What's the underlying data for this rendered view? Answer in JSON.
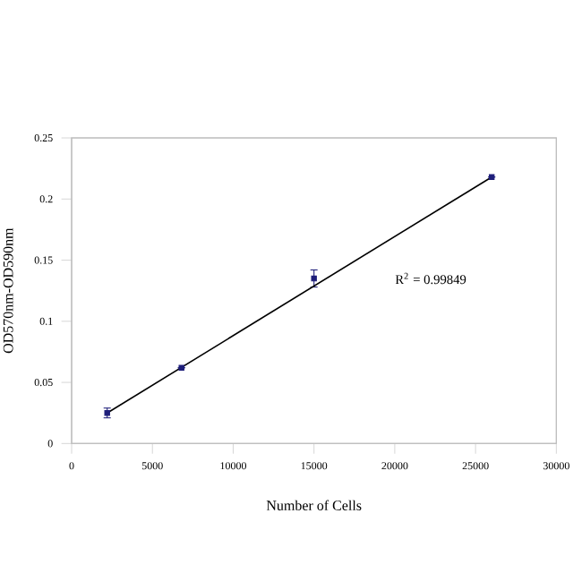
{
  "chart_data": {
    "type": "scatter",
    "xlabel": "Number of Cells",
    "ylabel": "OD570nm-OD590nm",
    "xlim": [
      0,
      30000
    ],
    "ylim": [
      0,
      0.25
    ],
    "xticks": [
      0,
      5000,
      10000,
      15000,
      20000,
      25000,
      30000
    ],
    "yticks": [
      0,
      0.05,
      0.1,
      0.15,
      0.2,
      0.25
    ],
    "grid": false,
    "marker": "square",
    "annotations": [
      "R$^{2}$ = 0.99849"
    ],
    "series": [
      {
        "color": "#1f1f7a",
        "x": [
          2200,
          6800,
          15000,
          26000
        ],
        "values": [
          0.025,
          0.062,
          0.135,
          0.218
        ],
        "errors": [
          0.004,
          null,
          0.007,
          null
        ]
      },
      {
        "type": "line",
        "color": "#000000",
        "x": [
          2200,
          26000
        ],
        "values": [
          0.025,
          0.218
        ],
        "line_style": "solid",
        "marker": "none"
      }
    ]
  }
}
